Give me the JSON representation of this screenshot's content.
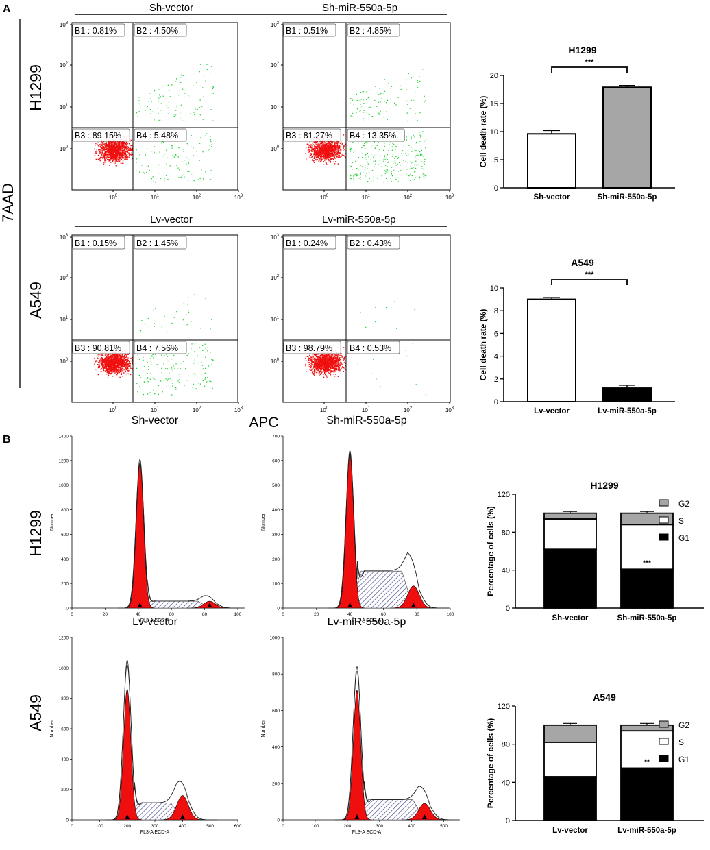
{
  "panel_labels": {
    "a": "A",
    "b": "B"
  },
  "axis_titles": {
    "y_outer": "7AAD",
    "x_outer": "APC"
  },
  "row_labels": {
    "top_1": "H1299",
    "top_2": "A549",
    "bot_1": "H1299",
    "bot_2": "A549"
  },
  "colors": {
    "red": "#ef0f0f",
    "green": "#1fd12f",
    "gray": "#a6a6a6",
    "black": "#000000",
    "hatch": "#4a4a90"
  },
  "chart_data": [
    {
      "type": "scatter",
      "id": "flow-h1299",
      "groups": [
        "Sh-vector",
        "Sh-miR-550a-5p"
      ],
      "panels": [
        {
          "quadrants": [
            "B1 : 0.81%",
            "B2 : 4.50%",
            "B3 : 89.15%",
            "B4 : 5.48%"
          ]
        },
        {
          "quadrants": [
            "B1 : 0.51%",
            "B2 : 4.85%",
            "B3 : 81.27%",
            "B4 : 13.35%"
          ]
        }
      ],
      "y_ticks": [
        "10^0",
        "10^1",
        "10^2",
        "10^3"
      ],
      "x_ticks": [
        "10^0",
        "10^1",
        "10^2",
        "10^3"
      ]
    },
    {
      "type": "scatter",
      "id": "flow-a549",
      "groups": [
        "Lv-vector",
        "Lv-miR-550a-5p"
      ],
      "panels": [
        {
          "quadrants": [
            "B1 : 0.15%",
            "B2 : 1.45%",
            "B3 : 90.81%",
            "B4 : 7.56%"
          ]
        },
        {
          "quadrants": [
            "B1 : 0.24%",
            "B2 : 0.43%",
            "B3 : 98.79%",
            "B4 : 0.53%"
          ]
        }
      ],
      "y_ticks": [
        "10^0",
        "10^1",
        "10^2",
        "10^3"
      ],
      "x_ticks": [
        "10^0",
        "10^1",
        "10^2",
        "10^3"
      ]
    },
    {
      "type": "bar",
      "id": "death-h1299",
      "title": "H1299",
      "categories": [
        "Sh-vector",
        "Sh-miR-550a-5p"
      ],
      "values": [
        9.6,
        17.9
      ],
      "errors": [
        0.6,
        0.3
      ],
      "ylabel": "Cell death rate (%)",
      "ylim": [
        0,
        20
      ],
      "yticks": [
        0,
        5,
        10,
        15,
        20
      ],
      "significance": "***"
    },
    {
      "type": "bar",
      "id": "death-a549",
      "title": "A549",
      "categories": [
        "Lv-vector",
        "Lv-miR-550a-5p"
      ],
      "values": [
        9.0,
        1.2
      ],
      "errors": [
        0.15,
        0.25
      ],
      "ylabel": "Cell death rate (%)",
      "ylim": [
        0,
        10
      ],
      "yticks": [
        0,
        2,
        4,
        6,
        8,
        10
      ],
      "significance": "***"
    },
    {
      "type": "area",
      "id": "cc-sh-vector",
      "title": "Sh-vector",
      "xlabel": "FL3-A ECD-A",
      "ylabel": "Number",
      "xlim": [
        0,
        100
      ],
      "ylim": [
        0,
        1400
      ],
      "xticks": [
        0,
        20,
        40,
        60,
        80,
        100
      ],
      "yticks": [
        0,
        200,
        400,
        600,
        800,
        1000,
        1200,
        1400
      ],
      "g1_peak": {
        "x": 41,
        "height": 1180
      },
      "g2_peak": {
        "x": 83,
        "height": 55
      },
      "s_level": 55,
      "envelope_peak": 1210,
      "markers": [
        41,
        83
      ]
    },
    {
      "type": "area",
      "id": "cc-sh-mir",
      "title": "Sh-miR-550a-5p",
      "xlabel": "FL3-A ECD-A",
      "ylabel": "Number",
      "xlim": [
        0,
        100
      ],
      "ylim": [
        0,
        700
      ],
      "xticks": [
        0,
        20,
        40,
        60,
        80,
        100
      ],
      "yticks": [
        0,
        100,
        200,
        300,
        400,
        500,
        600,
        700
      ],
      "g1_peak": {
        "x": 40,
        "height": 630
      },
      "g2_peak": {
        "x": 78,
        "height": 90
      },
      "s_level": 150,
      "envelope_peak": 640,
      "markers": [
        40,
        78
      ]
    },
    {
      "type": "area",
      "id": "cc-lv-vector",
      "title": "Lv-vector",
      "xlabel": "FL3-A ECD-A",
      "ylabel": "Number",
      "xlim": [
        0,
        600
      ],
      "ylim": [
        0,
        1200
      ],
      "xticks": [
        0,
        100,
        200,
        300,
        400,
        500,
        600
      ],
      "yticks": [
        0,
        200,
        400,
        600,
        800,
        1000,
        1200
      ],
      "g1_peak": {
        "x": 200,
        "height": 860
      },
      "g2_peak": {
        "x": 400,
        "height": 160
      },
      "s_level": 110,
      "envelope_peak": 1050,
      "markers": [
        200,
        400
      ]
    },
    {
      "type": "area",
      "id": "cc-lv-mir",
      "title": "Lv-miR-550a-5p",
      "xlabel": "FL3-A ECD-A",
      "ylabel": "Number",
      "xlim": [
        0,
        520
      ],
      "ylim": [
        0,
        1000
      ],
      "xticks": [
        0,
        100,
        200,
        300,
        400,
        500
      ],
      "yticks": [
        0,
        200,
        400,
        600,
        800,
        1000
      ],
      "g1_peak": {
        "x": 230,
        "height": 710
      },
      "g2_peak": {
        "x": 440,
        "height": 90
      },
      "s_level": 110,
      "envelope_peak": 840,
      "markers": [
        230,
        440
      ]
    },
    {
      "type": "bar",
      "id": "cc-stack-h1299",
      "title": "H1299",
      "stacked": true,
      "categories": [
        "Sh-vector",
        "Sh-miR-550a-5p"
      ],
      "series": [
        {
          "name": "G1",
          "values": [
            62,
            41
          ]
        },
        {
          "name": "S",
          "values": [
            32,
            47
          ]
        },
        {
          "name": "G2",
          "values": [
            6,
            12
          ]
        }
      ],
      "legend": [
        "G2",
        "S",
        "G1"
      ],
      "ylabel": "Percentage of cells (%)",
      "ylim": [
        0,
        120
      ],
      "yticks": [
        0,
        40,
        80,
        120
      ],
      "significance": [
        "",
        "***"
      ]
    },
    {
      "type": "bar",
      "id": "cc-stack-a549",
      "title": "A549",
      "stacked": true,
      "categories": [
        "Lv-vector",
        "Lv-miR-550a-5p"
      ],
      "series": [
        {
          "name": "G1",
          "values": [
            46,
            55
          ]
        },
        {
          "name": "S",
          "values": [
            36,
            39
          ]
        },
        {
          "name": "G2",
          "values": [
            18,
            6
          ]
        }
      ],
      "legend": [
        "G2",
        "S",
        "G1"
      ],
      "ylabel": "Percentage of cells (%)",
      "ylim": [
        0,
        120
      ],
      "yticks": [
        0,
        40,
        80,
        120
      ],
      "significance": [
        "",
        "**"
      ]
    }
  ]
}
